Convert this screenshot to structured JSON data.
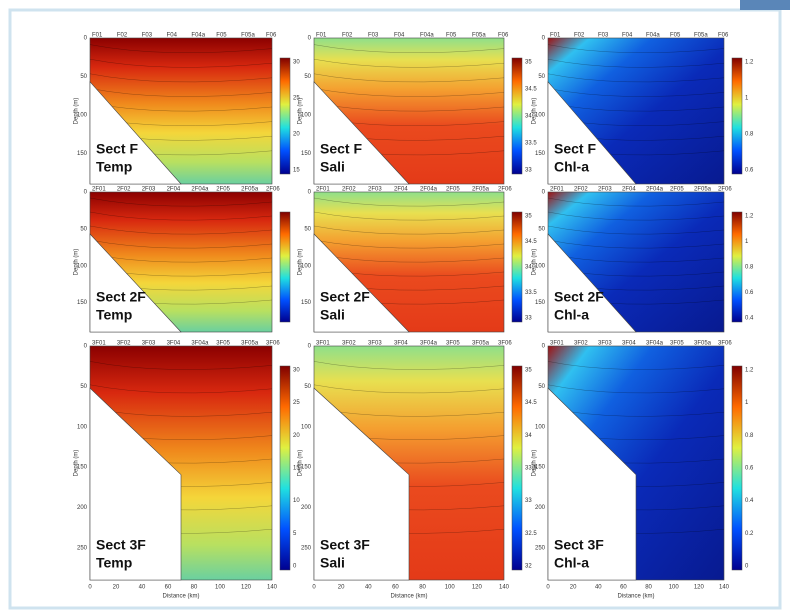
{
  "y_axis_label": "Depth (m)",
  "x_axis_label": "Distance (km)",
  "x_ticks": [
    "0",
    "20",
    "40",
    "60",
    "80",
    "100",
    "120",
    "140"
  ],
  "depth_ticks_short": [
    "0",
    "50",
    "100",
    "150"
  ],
  "depth_ticks_long": [
    "0",
    "50",
    "100",
    "150",
    "200",
    "250"
  ],
  "stations": [
    [
      "F01",
      "F02",
      "F03",
      "F04",
      "F04a",
      "F05",
      "F05a",
      "F06"
    ],
    [
      "2F01",
      "2F02",
      "2F03",
      "2F04",
      "2F04a",
      "2F05",
      "2F05a",
      "2F06"
    ],
    [
      "3F01",
      "3F02",
      "3F03",
      "3F04",
      "3F04a",
      "3F05",
      "3F05a",
      "3F06"
    ]
  ],
  "panels": [
    [
      {
        "section": "Sect F",
        "variable": "Temp",
        "colorbar_ticks": [
          "30",
          "25",
          "20",
          "15"
        ]
      },
      {
        "section": "Sect F",
        "variable": "Sali",
        "colorbar_ticks": [
          "35",
          "34.5",
          "34",
          "33.5",
          "33"
        ]
      },
      {
        "section": "Sect F",
        "variable": "Chl-a",
        "colorbar_ticks": [
          "1.2",
          "1",
          "0.8",
          "0.6"
        ]
      }
    ],
    [
      {
        "section": "Sect 2F",
        "variable": "Temp",
        "colorbar_ticks": []
      },
      {
        "section": "Sect 2F",
        "variable": "Sali",
        "colorbar_ticks": [
          "35",
          "34.5",
          "34",
          "33.5",
          "33"
        ]
      },
      {
        "section": "Sect 2F",
        "variable": "Chl-a",
        "colorbar_ticks": [
          "1.2",
          "1",
          "0.8",
          "0.6",
          "0.4"
        ]
      }
    ],
    [
      {
        "section": "Sect 3F",
        "variable": "Temp",
        "colorbar_ticks": [
          "30",
          "25",
          "20",
          "15",
          "10",
          "5",
          "0"
        ]
      },
      {
        "section": "Sect 3F",
        "variable": "Sali",
        "colorbar_ticks": [
          "35",
          "34.5",
          "34",
          "33.5",
          "33",
          "32.5",
          "32"
        ]
      },
      {
        "section": "Sect 3F",
        "variable": "Chl-a",
        "colorbar_ticks": [
          "1.2",
          "1",
          "0.8",
          "0.6",
          "0.4",
          "0.2",
          "0"
        ]
      }
    ]
  ]
}
